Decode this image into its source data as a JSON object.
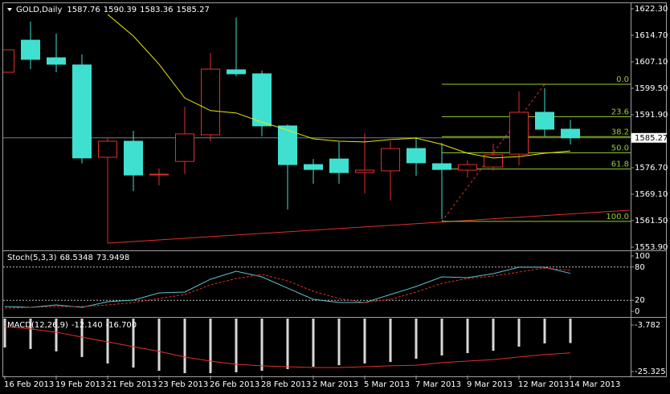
{
  "chart_data": [
    {
      "type": "candlestick",
      "title": "GOLD,Daily",
      "categories": [
        "16 Feb 2013",
        null,
        "19 Feb 2013",
        null,
        "21 Feb 2013",
        null,
        "23 Feb 2013",
        null,
        "26 Feb 2013",
        null,
        "28 Feb 2013",
        null,
        "2 Mar 2013",
        null,
        "5 Mar 2013",
        null,
        "7 Mar 2013",
        null,
        "9 Mar 2013",
        null,
        "12 Mar 2013",
        null,
        "14 Mar 2013"
      ],
      "open": [
        1604.1,
        1613.3,
        1608.25,
        1606.2,
        1579.7,
        1584.3,
        1574.85,
        1578.5,
        1586.15,
        1604.8,
        1603.65,
        1588.7,
        1577.6,
        1579.2,
        1575.3,
        1575.8,
        1582.2,
        1577.85,
        1576.0,
        1576.9,
        1580.6,
        1592.6,
        1587.76
      ],
      "high": [
        1610.6,
        1618.6,
        1615.2,
        1609.2,
        1585.2,
        1587.3,
        1576.5,
        1594.2,
        1609.6,
        1619.8,
        1604.6,
        1589.1,
        1579.2,
        1584.1,
        1586.6,
        1584.3,
        1585.45,
        1583.8,
        1578.8,
        1583.6,
        1598.6,
        1599.5,
        1590.39
      ],
      "low": [
        1604.1,
        1605.0,
        1604.1,
        1577.9,
        1555.05,
        1570.0,
        1571.6,
        1574.85,
        1584.3,
        1603.0,
        1585.7,
        1564.7,
        1572.1,
        1572.1,
        1569.3,
        1567.3,
        1574.4,
        1562.0,
        1573.9,
        1575.8,
        1577.4,
        1585.7,
        1583.36
      ],
      "close": [
        1610.55,
        1607.8,
        1606.4,
        1579.5,
        1584.3,
        1574.6,
        1574.85,
        1586.4,
        1605.0,
        1603.65,
        1588.7,
        1577.6,
        1576.2,
        1575.3,
        1576.0,
        1582.2,
        1578.1,
        1576.2,
        1577.6,
        1580.4,
        1592.6,
        1587.75,
        1585.27
      ],
      "up_color": "#e0302a",
      "down_color": "#40e0d0",
      "ylim": [
        1553.21,
        1623.68
      ],
      "yticks": [
        {
          "value": 1622.3,
          "label": "1622.30"
        },
        {
          "value": 1614.7,
          "label": "1614.70"
        },
        {
          "value": 1607.1,
          "label": "1607.10"
        },
        {
          "value": 1599.5,
          "label": "1599.50"
        },
        {
          "value": 1591.9,
          "label": "1591.90"
        },
        {
          "value": 1576.7,
          "label": "1576.70"
        },
        {
          "value": 1569.1,
          "label": "1569.10"
        },
        {
          "value": 1561.5,
          "label": "1561.50"
        },
        {
          "value": 1553.9,
          "label": "1553.90"
        }
      ],
      "moving_average": {
        "color": "#e8e800",
        "values": [
          null,
          null,
          null,
          null,
          1620.7,
          1614.5,
          1606.4,
          1596.7,
          1593.1,
          1592.4,
          1589.8,
          1587.5,
          1585.0,
          1584.3,
          1584.1,
          1584.8,
          1585.2,
          1583.4,
          1580.85,
          1579.5,
          1579.9,
          1580.85,
          1581.5
        ]
      },
      "trendline": {
        "color": "#e0302a",
        "x": [
          4,
          24.3
        ],
        "values": [
          1555.05,
          1564.5
        ]
      },
      "fibonacci": {
        "color": "#9acd32",
        "from": 17,
        "to": 21,
        "high": 1600.65,
        "low": 1561.3,
        "levels": [
          {
            "value": 0,
            "label": "0.0"
          },
          {
            "value": 23.6,
            "label": "23.6"
          },
          {
            "value": 38.2,
            "label": "38.2"
          },
          {
            "value": 50,
            "label": "50.0"
          },
          {
            "value": 61.8,
            "label": "61.8"
          },
          {
            "value": 100,
            "label": "100.0"
          }
        ]
      }
    },
    {
      "type": "line",
      "title": "Stoch(5,3,3)",
      "ylim": [
        -7.2,
        107.2
      ],
      "yticks": [
        100,
        80,
        20,
        0
      ],
      "levels": [
        80,
        20
      ],
      "series": [
        {
          "color": "#5fc0d0",
          "values": [
            8.7,
            7.2,
            11.6,
            7.2,
            17.4,
            20.3,
            33.3,
            34.8,
            58,
            72.5,
            62.3,
            42,
            21.7,
            15.9,
            15.9,
            30.4,
            44.9,
            62.3,
            60.9,
            68.1,
            79.7,
            79.7,
            68.5348
          ]
        },
        {
          "color": "#e0302a",
          "dash": true,
          "values": [
            5.8,
            7.2,
            8.7,
            8.7,
            11.6,
            15.9,
            23.2,
            30.4,
            47.8,
            59.4,
            66.7,
            55,
            36.2,
            23.2,
            15.9,
            21.7,
            34.8,
            50.7,
            59.4,
            63.8,
            71,
            78.3,
            73.9498
          ]
        }
      ]
    },
    {
      "type": "macd",
      "title": "MACD(12,26,9)",
      "header_values": [
        "-12.140",
        "-16.700"
      ],
      "ylim": [
        -27.2,
        -0.8
      ],
      "yticks": [
        -3.782,
        -25.325
      ],
      "bar_color": "#d8d8d8",
      "values": [
        -14.2,
        -14.9,
        -16.0,
        -18.6,
        -21.6,
        -23.5,
        -25.0,
        -26.1,
        -26.1,
        -25.7,
        -25.0,
        -24.2,
        -23.1,
        -22.4,
        -21.6,
        -20.9,
        -19.4,
        -17.9,
        -16.8,
        -15.7,
        -13.8,
        -12.3,
        -12.14
      ],
      "signal": {
        "color": "#e0302a",
        "values": [
          -4.5,
          -5.6,
          -7.1,
          -9.4,
          -11.6,
          -13.8,
          -16.0,
          -18.6,
          -20.5,
          -22.0,
          -22.7,
          -23.1,
          -23.5,
          -23.5,
          -23.1,
          -22.7,
          -22.4,
          -21.2,
          -20.5,
          -19.8,
          -18.6,
          -17.5,
          -16.7
        ]
      }
    }
  ]
}
